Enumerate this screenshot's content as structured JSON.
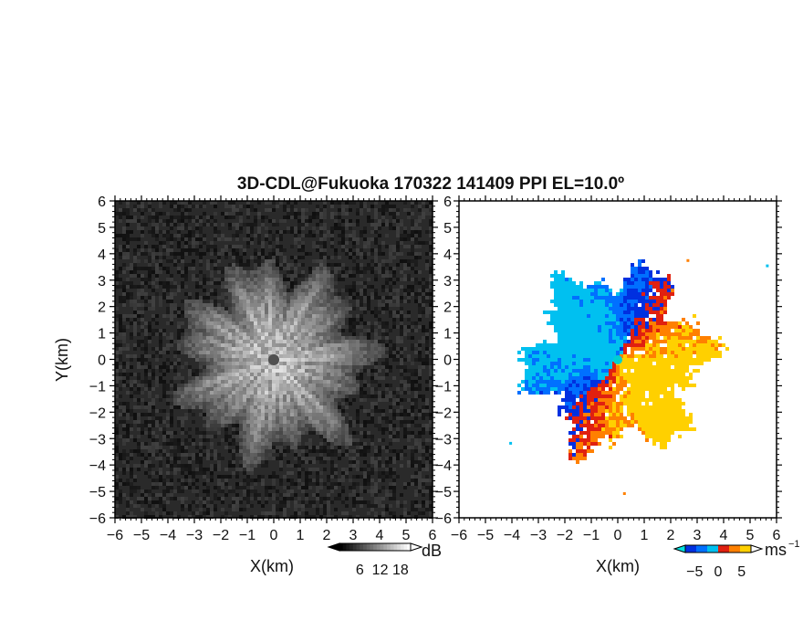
{
  "title": "3D-CDL@Fukuoka 170322 141409 PPI EL=10.0º",
  "chart_data": [
    {
      "type": "heatmap",
      "panel": "reflectivity",
      "xlabel": "X(km)",
      "ylabel": "Y(km)",
      "xlim": [
        -6,
        6
      ],
      "ylim": [
        -6,
        6
      ],
      "xticks": [
        "-6",
        "-5",
        "-4",
        "-3",
        "-2",
        "-1",
        "0",
        "1",
        "2",
        "3",
        "4",
        "5",
        "6"
      ],
      "yticks": [
        "6",
        "5",
        "4",
        "3",
        "2",
        "1",
        "0",
        "-1",
        "-2",
        "-3",
        "-4",
        "-5",
        "-6"
      ],
      "colormap": "grayscale",
      "background_color": "#2a2a2a",
      "echo_center": [
        0,
        0
      ],
      "echo_max_radius_km": 4.2,
      "colorbar": {
        "unit": "dB",
        "ticks": [
          "6",
          "12",
          "18"
        ],
        "range": [
          0,
          21
        ],
        "extend": "both",
        "colors": [
          "#000000",
          "#ffffff"
        ]
      }
    },
    {
      "type": "heatmap",
      "panel": "doppler-velocity",
      "xlabel": "X(km)",
      "xlim": [
        -6,
        6
      ],
      "ylim": [
        -6,
        6
      ],
      "xticks": [
        "-6",
        "-5",
        "-4",
        "-3",
        "-2",
        "-1",
        "0",
        "1",
        "2",
        "3",
        "4",
        "5",
        "6"
      ],
      "yticks": [
        "6",
        "5",
        "4",
        "3",
        "2",
        "1",
        "0",
        "-1",
        "-2",
        "-3",
        "-4",
        "-5",
        "-6"
      ],
      "colormap": "diverging-blue-red-yellow",
      "negative_colors": [
        "#0030e0",
        "#0070ff",
        "#00c0f0"
      ],
      "positive_colors": [
        "#e02010",
        "#ff8000",
        "#ffd000"
      ],
      "colorbar": {
        "unit": "ms",
        "unit_superscript": "−1",
        "ticks": [
          "−5",
          "0",
          "5"
        ],
        "range": [
          -7,
          7
        ],
        "extend": "both"
      }
    }
  ]
}
